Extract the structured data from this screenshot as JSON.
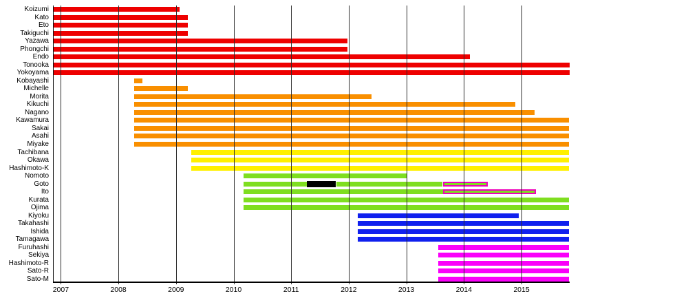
{
  "chart_data": {
    "type": "bar",
    "variant": "gantt-timeline",
    "title": "",
    "xlabel": "",
    "ylabel": "",
    "legend": "none",
    "grid": "vertical-year-lines-drawn-over-bars",
    "x_ticks": [
      2007,
      2008,
      2009,
      2010,
      2011,
      2012,
      2013,
      2014,
      2015
    ],
    "x_tick_labels": [
      "2007",
      "2008",
      "2009",
      "2010",
      "2011",
      "2012",
      "2013",
      "2014",
      "2015"
    ],
    "x_range": [
      2006.87,
      2015.83
    ],
    "colors": {
      "gen1": "#ee0000",
      "gen2": "#f98f00",
      "gen3": "#fff000",
      "gen4": "#7fde20",
      "gen5": "#1020ee",
      "gen6": "#fa00fa",
      "hiatus": "#000000",
      "concurrent_fill": "#7fde20",
      "concurrent_outline": "#ee00bb",
      "gridline": "#2a2a2a",
      "axis": "#000000"
    },
    "members": [
      {
        "name": "Koizumi",
        "generation": 1,
        "segments": [
          {
            "start": 2006.87,
            "end": 2009.06,
            "kind": "active"
          }
        ]
      },
      {
        "name": "Kato",
        "generation": 1,
        "segments": [
          {
            "start": 2006.87,
            "end": 2009.21,
            "kind": "active"
          }
        ]
      },
      {
        "name": "Eto",
        "generation": 1,
        "segments": [
          {
            "start": 2006.87,
            "end": 2009.21,
            "kind": "active"
          }
        ]
      },
      {
        "name": "Takiguchi",
        "generation": 1,
        "segments": [
          {
            "start": 2006.87,
            "end": 2009.21,
            "kind": "active"
          }
        ]
      },
      {
        "name": "Yazawa",
        "generation": 1,
        "segments": [
          {
            "start": 2006.87,
            "end": 2011.98,
            "kind": "active"
          }
        ]
      },
      {
        "name": "Phongchi",
        "generation": 1,
        "segments": [
          {
            "start": 2006.87,
            "end": 2011.98,
            "kind": "active"
          }
        ]
      },
      {
        "name": "Endo",
        "generation": 1,
        "segments": [
          {
            "start": 2006.87,
            "end": 2014.1,
            "kind": "active"
          }
        ]
      },
      {
        "name": "Tonooka",
        "generation": 1,
        "segments": [
          {
            "start": 2006.87,
            "end": 2015.83,
            "kind": "active"
          }
        ]
      },
      {
        "name": "Yokoyama",
        "generation": 1,
        "segments": [
          {
            "start": 2006.87,
            "end": 2015.83,
            "kind": "active"
          }
        ]
      },
      {
        "name": "Kobayashi",
        "generation": 2,
        "segments": [
          {
            "start": 2008.27,
            "end": 2008.42,
            "kind": "active"
          }
        ]
      },
      {
        "name": "Michelle",
        "generation": 2,
        "segments": [
          {
            "start": 2008.27,
            "end": 2009.21,
            "kind": "active"
          }
        ]
      },
      {
        "name": "Morita",
        "generation": 2,
        "segments": [
          {
            "start": 2008.27,
            "end": 2012.4,
            "kind": "active"
          }
        ]
      },
      {
        "name": "Kikuchi",
        "generation": 2,
        "segments": [
          {
            "start": 2008.27,
            "end": 2014.89,
            "kind": "active"
          }
        ]
      },
      {
        "name": "Nagano",
        "generation": 2,
        "segments": [
          {
            "start": 2008.27,
            "end": 2015.23,
            "kind": "active"
          }
        ]
      },
      {
        "name": "Kawamura",
        "generation": 2,
        "segments": [
          {
            "start": 2008.27,
            "end": 2015.83,
            "kind": "active"
          }
        ]
      },
      {
        "name": "Sakai",
        "generation": 2,
        "segments": [
          {
            "start": 2008.27,
            "end": 2015.83,
            "kind": "active"
          }
        ]
      },
      {
        "name": "Asahi",
        "generation": 2,
        "segments": [
          {
            "start": 2008.27,
            "end": 2015.83,
            "kind": "active"
          }
        ]
      },
      {
        "name": "Miyake",
        "generation": 2,
        "segments": [
          {
            "start": 2008.27,
            "end": 2015.83,
            "kind": "active"
          }
        ]
      },
      {
        "name": "Tachibana",
        "generation": 3,
        "segments": [
          {
            "start": 2009.27,
            "end": 2015.83,
            "kind": "active"
          }
        ]
      },
      {
        "name": "Okawa",
        "generation": 3,
        "segments": [
          {
            "start": 2009.27,
            "end": 2015.83,
            "kind": "active"
          }
        ]
      },
      {
        "name": "Hashimoto-K",
        "generation": 3,
        "segments": [
          {
            "start": 2009.27,
            "end": 2015.83,
            "kind": "active"
          }
        ]
      },
      {
        "name": "Nomoto",
        "generation": 4,
        "segments": [
          {
            "start": 2010.17,
            "end": 2013.0,
            "kind": "active"
          }
        ]
      },
      {
        "name": "Goto",
        "generation": 4,
        "segments": [
          {
            "start": 2010.17,
            "end": 2011.27,
            "kind": "active"
          },
          {
            "start": 2011.27,
            "end": 2011.78,
            "kind": "hiatus"
          },
          {
            "start": 2011.78,
            "end": 2013.62,
            "kind": "active"
          },
          {
            "start": 2013.64,
            "end": 2014.42,
            "kind": "concurrent"
          }
        ]
      },
      {
        "name": "Ito",
        "generation": 4,
        "segments": [
          {
            "start": 2010.17,
            "end": 2013.64,
            "kind": "active"
          },
          {
            "start": 2013.64,
            "end": 2015.25,
            "kind": "concurrent"
          }
        ]
      },
      {
        "name": "Kurata",
        "generation": 4,
        "segments": [
          {
            "start": 2010.17,
            "end": 2015.83,
            "kind": "active"
          }
        ]
      },
      {
        "name": "Ojima",
        "generation": 4,
        "segments": [
          {
            "start": 2010.17,
            "end": 2015.83,
            "kind": "active"
          }
        ]
      },
      {
        "name": "Kiyoku",
        "generation": 5,
        "segments": [
          {
            "start": 2012.16,
            "end": 2014.95,
            "kind": "active"
          }
        ]
      },
      {
        "name": "Takahashi",
        "generation": 5,
        "segments": [
          {
            "start": 2012.16,
            "end": 2015.83,
            "kind": "active"
          }
        ]
      },
      {
        "name": "Ishida",
        "generation": 5,
        "segments": [
          {
            "start": 2012.16,
            "end": 2015.83,
            "kind": "active"
          }
        ]
      },
      {
        "name": "Tamagawa",
        "generation": 5,
        "segments": [
          {
            "start": 2012.16,
            "end": 2015.83,
            "kind": "active"
          }
        ]
      },
      {
        "name": "Furuhashi",
        "generation": 6,
        "segments": [
          {
            "start": 2013.55,
            "end": 2015.83,
            "kind": "active"
          }
        ]
      },
      {
        "name": "Sekiya",
        "generation": 6,
        "segments": [
          {
            "start": 2013.55,
            "end": 2015.83,
            "kind": "active"
          }
        ]
      },
      {
        "name": "Hashimoto-R",
        "generation": 6,
        "segments": [
          {
            "start": 2013.55,
            "end": 2015.83,
            "kind": "active"
          }
        ]
      },
      {
        "name": "Sato-R",
        "generation": 6,
        "segments": [
          {
            "start": 2013.55,
            "end": 2015.83,
            "kind": "active"
          }
        ]
      },
      {
        "name": "Sato-M",
        "generation": 6,
        "segments": [
          {
            "start": 2013.55,
            "end": 2015.83,
            "kind": "active"
          }
        ]
      }
    ]
  }
}
